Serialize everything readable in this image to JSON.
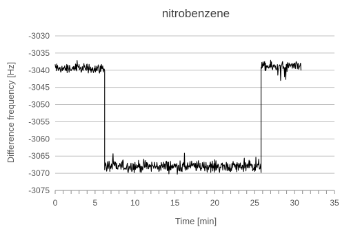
{
  "chart_data": {
    "type": "line",
    "title": "nitrobenzene",
    "xlabel": "Time [min]",
    "ylabel": "Difference frequency [Hz]",
    "xlim": [
      0,
      35
    ],
    "ylim": [
      -3075,
      -3030
    ],
    "x_ticks": [
      "0",
      "5",
      "10",
      "15",
      "20",
      "25",
      "30",
      "35"
    ],
    "y_ticks": [
      "-3030",
      "-3035",
      "-3040",
      "-3045",
      "-3050",
      "-3055",
      "-3060",
      "-3065",
      "-3070",
      "-3075"
    ],
    "grid": "horizontal",
    "line_color": "#000000",
    "series": [
      {
        "segments": [
          {
            "x_start": 0.0,
            "x_end": 6.2,
            "baseline": -3039.5,
            "noise_amplitude": 2.0
          },
          {
            "x_start": 6.2,
            "x_end": 25.8,
            "baseline": -3068.0,
            "noise_amplitude": 2.5
          },
          {
            "x_start": 25.8,
            "x_end": 30.8,
            "baseline": -3039.0,
            "noise_amplitude": 2.2
          }
        ]
      }
    ]
  }
}
